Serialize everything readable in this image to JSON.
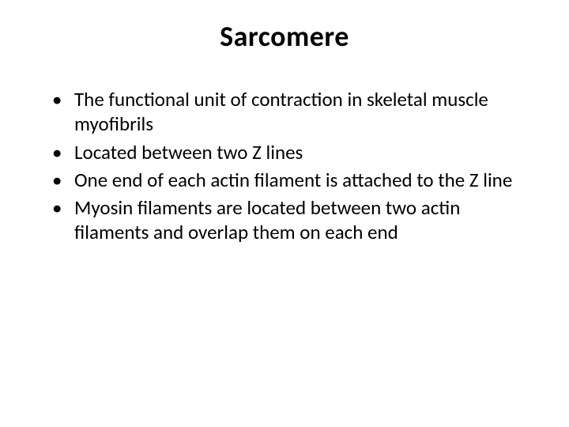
{
  "slide": {
    "title": "Sarcomere",
    "title_fontsize": 36,
    "title_color": "#000000",
    "title_weight": 700,
    "background_color": "#ffffff",
    "bullets": [
      "The functional unit of contraction in skeletal muscle myofibrils",
      "Located between two Z lines",
      "One end of each actin filament is attached to the Z line",
      "Myosin filaments are located between two actin filaments and overlap them on each end"
    ],
    "bullet_fontsize": 25,
    "bullet_color": "#000000",
    "bullet_marker": "•",
    "font_family": "Calibri"
  }
}
